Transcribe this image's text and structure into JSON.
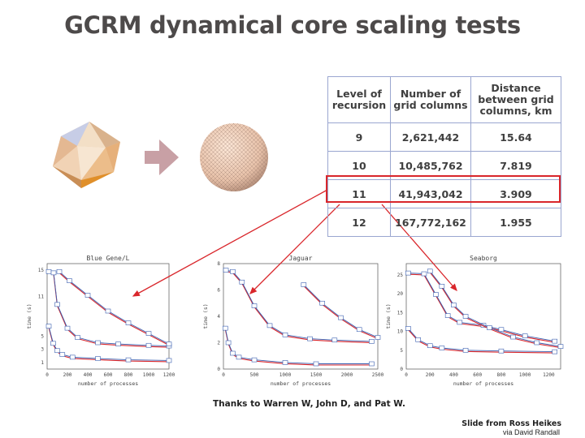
{
  "slide": {
    "title": "GCRM dynamical core scaling tests",
    "credits": "Thanks to Warren W, John D, and Pat  W.",
    "attribution": "Slide from Ross Heikes",
    "attribution2": "via David Randall"
  },
  "table": {
    "headers": [
      "Level of recursion",
      "Number of grid columns",
      "Distance between grid columns, km"
    ],
    "rows": [
      [
        "9",
        "2,621,442",
        "15.64"
      ],
      [
        "10",
        "10,485,762",
        "7.819"
      ],
      [
        "11",
        "41,943,042",
        "3.909"
      ],
      [
        "12",
        "167,772,162",
        "1.955"
      ]
    ],
    "highlighted_row": 2
  },
  "colors": {
    "accent": "#d9262b",
    "series_blue": "#3a5fb0",
    "series_red": "#d9262b",
    "arrow_fill": "#c8a0a5"
  },
  "chart_data": [
    {
      "type": "line",
      "title": "Blue Gene/L",
      "xlabel": "number of processes",
      "ylabel": "time (s)",
      "xlim": [
        0,
        1200
      ],
      "ylim": [
        0,
        16
      ],
      "x_ticks": [
        "0",
        "200",
        "400",
        "600",
        "800",
        "1000",
        "1200"
      ],
      "y_ticks": [
        "1",
        "3",
        "5",
        "11",
        "15"
      ],
      "series": [
        {
          "points": [
            [
              16,
              14.8
            ],
            [
              64,
              14.6
            ],
            [
              100,
              9.8
            ],
            [
              200,
              6.2
            ],
            [
              300,
              4.8
            ],
            [
              500,
              4.0
            ],
            [
              700,
              3.8
            ],
            [
              1000,
              3.6
            ],
            [
              1200,
              3.5
            ]
          ]
        },
        {
          "points": [
            [
              16,
              6.5
            ],
            [
              60,
              3.9
            ],
            [
              100,
              2.8
            ],
            [
              150,
              2.2
            ],
            [
              250,
              1.8
            ],
            [
              500,
              1.6
            ],
            [
              800,
              1.4
            ],
            [
              1200,
              1.3
            ]
          ]
        },
        {
          "points": [
            [
              120,
              14.8
            ],
            [
              220,
              13.4
            ],
            [
              400,
              11.2
            ],
            [
              600,
              8.8
            ],
            [
              800,
              7.0
            ],
            [
              1000,
              5.4
            ],
            [
              1200,
              3.8
            ]
          ]
        }
      ]
    },
    {
      "type": "line",
      "title": "Jaguar",
      "xlabel": "number of processes",
      "ylabel": "time (s)",
      "xlim": [
        0,
        2500
      ],
      "ylim": [
        0,
        8
      ],
      "x_ticks": [
        "0",
        "500",
        "1000",
        "1500",
        "2000",
        "2500"
      ],
      "y_ticks": [
        "0",
        "2",
        "4",
        "6",
        "8"
      ],
      "series": [
        {
          "points": [
            [
              40,
              7.5
            ],
            [
              150,
              7.4
            ],
            [
              300,
              6.6
            ],
            [
              500,
              4.8
            ],
            [
              750,
              3.3
            ],
            [
              1000,
              2.6
            ],
            [
              1400,
              2.3
            ],
            [
              1800,
              2.2
            ],
            [
              2400,
              2.1
            ]
          ]
        },
        {
          "points": [
            [
              30,
              3.1
            ],
            [
              80,
              2.0
            ],
            [
              150,
              1.2
            ],
            [
              250,
              0.9
            ],
            [
              500,
              0.7
            ],
            [
              1000,
              0.5
            ],
            [
              1500,
              0.4
            ],
            [
              2400,
              0.4
            ]
          ]
        },
        {
          "points": [
            [
              1300,
              6.4
            ],
            [
              1600,
              5.0
            ],
            [
              1900,
              3.9
            ],
            [
              2200,
              3.0
            ],
            [
              2500,
              2.4
            ]
          ]
        }
      ]
    },
    {
      "type": "line",
      "title": "Seaborg",
      "xlabel": "number of processes",
      "ylabel": "time (s)",
      "xlim": [
        0,
        1300
      ],
      "ylim": [
        0,
        28
      ],
      "x_ticks": [
        "0",
        "200",
        "400",
        "600",
        "800",
        "1000",
        "1200"
      ],
      "y_ticks": [
        "0",
        "5",
        "10",
        "15",
        "20",
        "25"
      ],
      "series": [
        {
          "points": [
            [
              16,
              25.5
            ],
            [
              150,
              25.3
            ],
            [
              250,
              19.8
            ],
            [
              350,
              14.2
            ],
            [
              450,
              12.4
            ],
            [
              650,
              11.6
            ],
            [
              800,
              10.5
            ],
            [
              1000,
              8.8
            ],
            [
              1250,
              7.4
            ]
          ]
        },
        {
          "points": [
            [
              16,
              10.8
            ],
            [
              100,
              7.8
            ],
            [
              200,
              6.2
            ],
            [
              300,
              5.6
            ],
            [
              500,
              5.0
            ],
            [
              800,
              4.8
            ],
            [
              1250,
              4.6
            ]
          ]
        },
        {
          "points": [
            [
              200,
              26
            ],
            [
              300,
              22
            ],
            [
              400,
              17
            ],
            [
              500,
              14
            ],
            [
              700,
              11
            ],
            [
              900,
              8.5
            ],
            [
              1100,
              7
            ],
            [
              1300,
              6
            ]
          ]
        }
      ]
    }
  ]
}
